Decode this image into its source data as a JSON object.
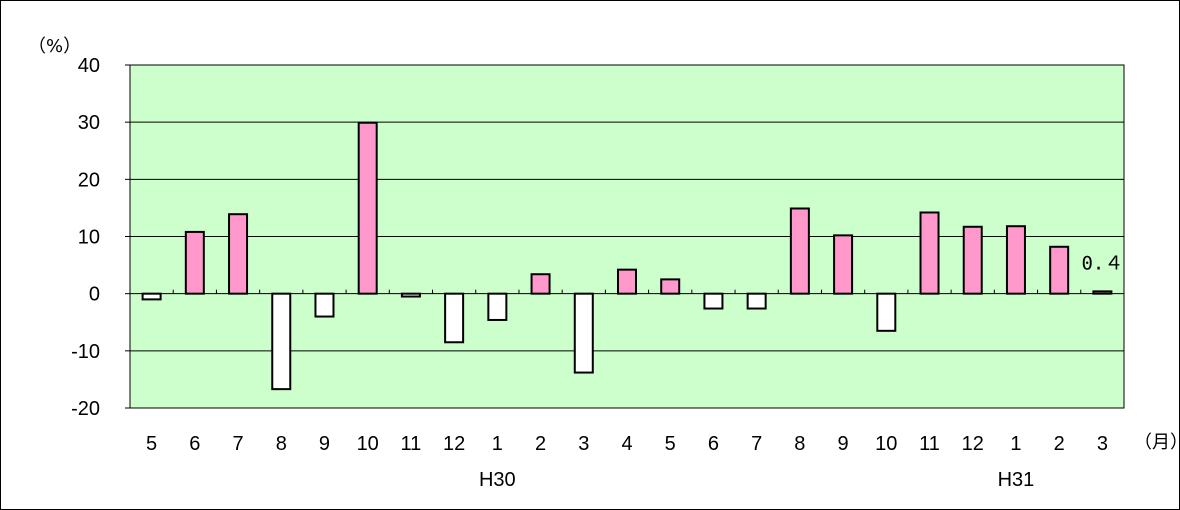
{
  "chart_data": {
    "type": "bar",
    "y_unit_label": "（%）",
    "x_unit_label": "（月）",
    "ylim": [
      -20,
      40
    ],
    "yticks": [
      40,
      30,
      20,
      10,
      0,
      -10,
      -20
    ],
    "grid": true,
    "categories": [
      "5",
      "6",
      "7",
      "8",
      "9",
      "10",
      "11",
      "12",
      "1",
      "2",
      "3",
      "4",
      "5",
      "6",
      "7",
      "8",
      "9",
      "10",
      "11",
      "12",
      "1",
      "2",
      "3"
    ],
    "values": [
      -1.0,
      10.8,
      13.9,
      -16.7,
      -4.0,
      29.9,
      -0.5,
      -8.5,
      -4.6,
      3.4,
      -13.8,
      4.2,
      2.5,
      -2.6,
      -2.6,
      14.9,
      10.2,
      -6.5,
      14.2,
      11.7,
      11.8,
      8.2,
      0.4
    ],
    "groups": [
      {
        "label": "H30",
        "category_index": 8
      },
      {
        "label": "H31",
        "category_index": 20
      }
    ],
    "data_labels": [
      {
        "category_index": 22,
        "text": "0.４"
      }
    ],
    "colors": {
      "plot_background": "#ccffcc",
      "positive_bar": "#ff99cc",
      "negative_bar": "#ffffff",
      "bar_border": "#000000",
      "gridline": "#000000"
    }
  }
}
